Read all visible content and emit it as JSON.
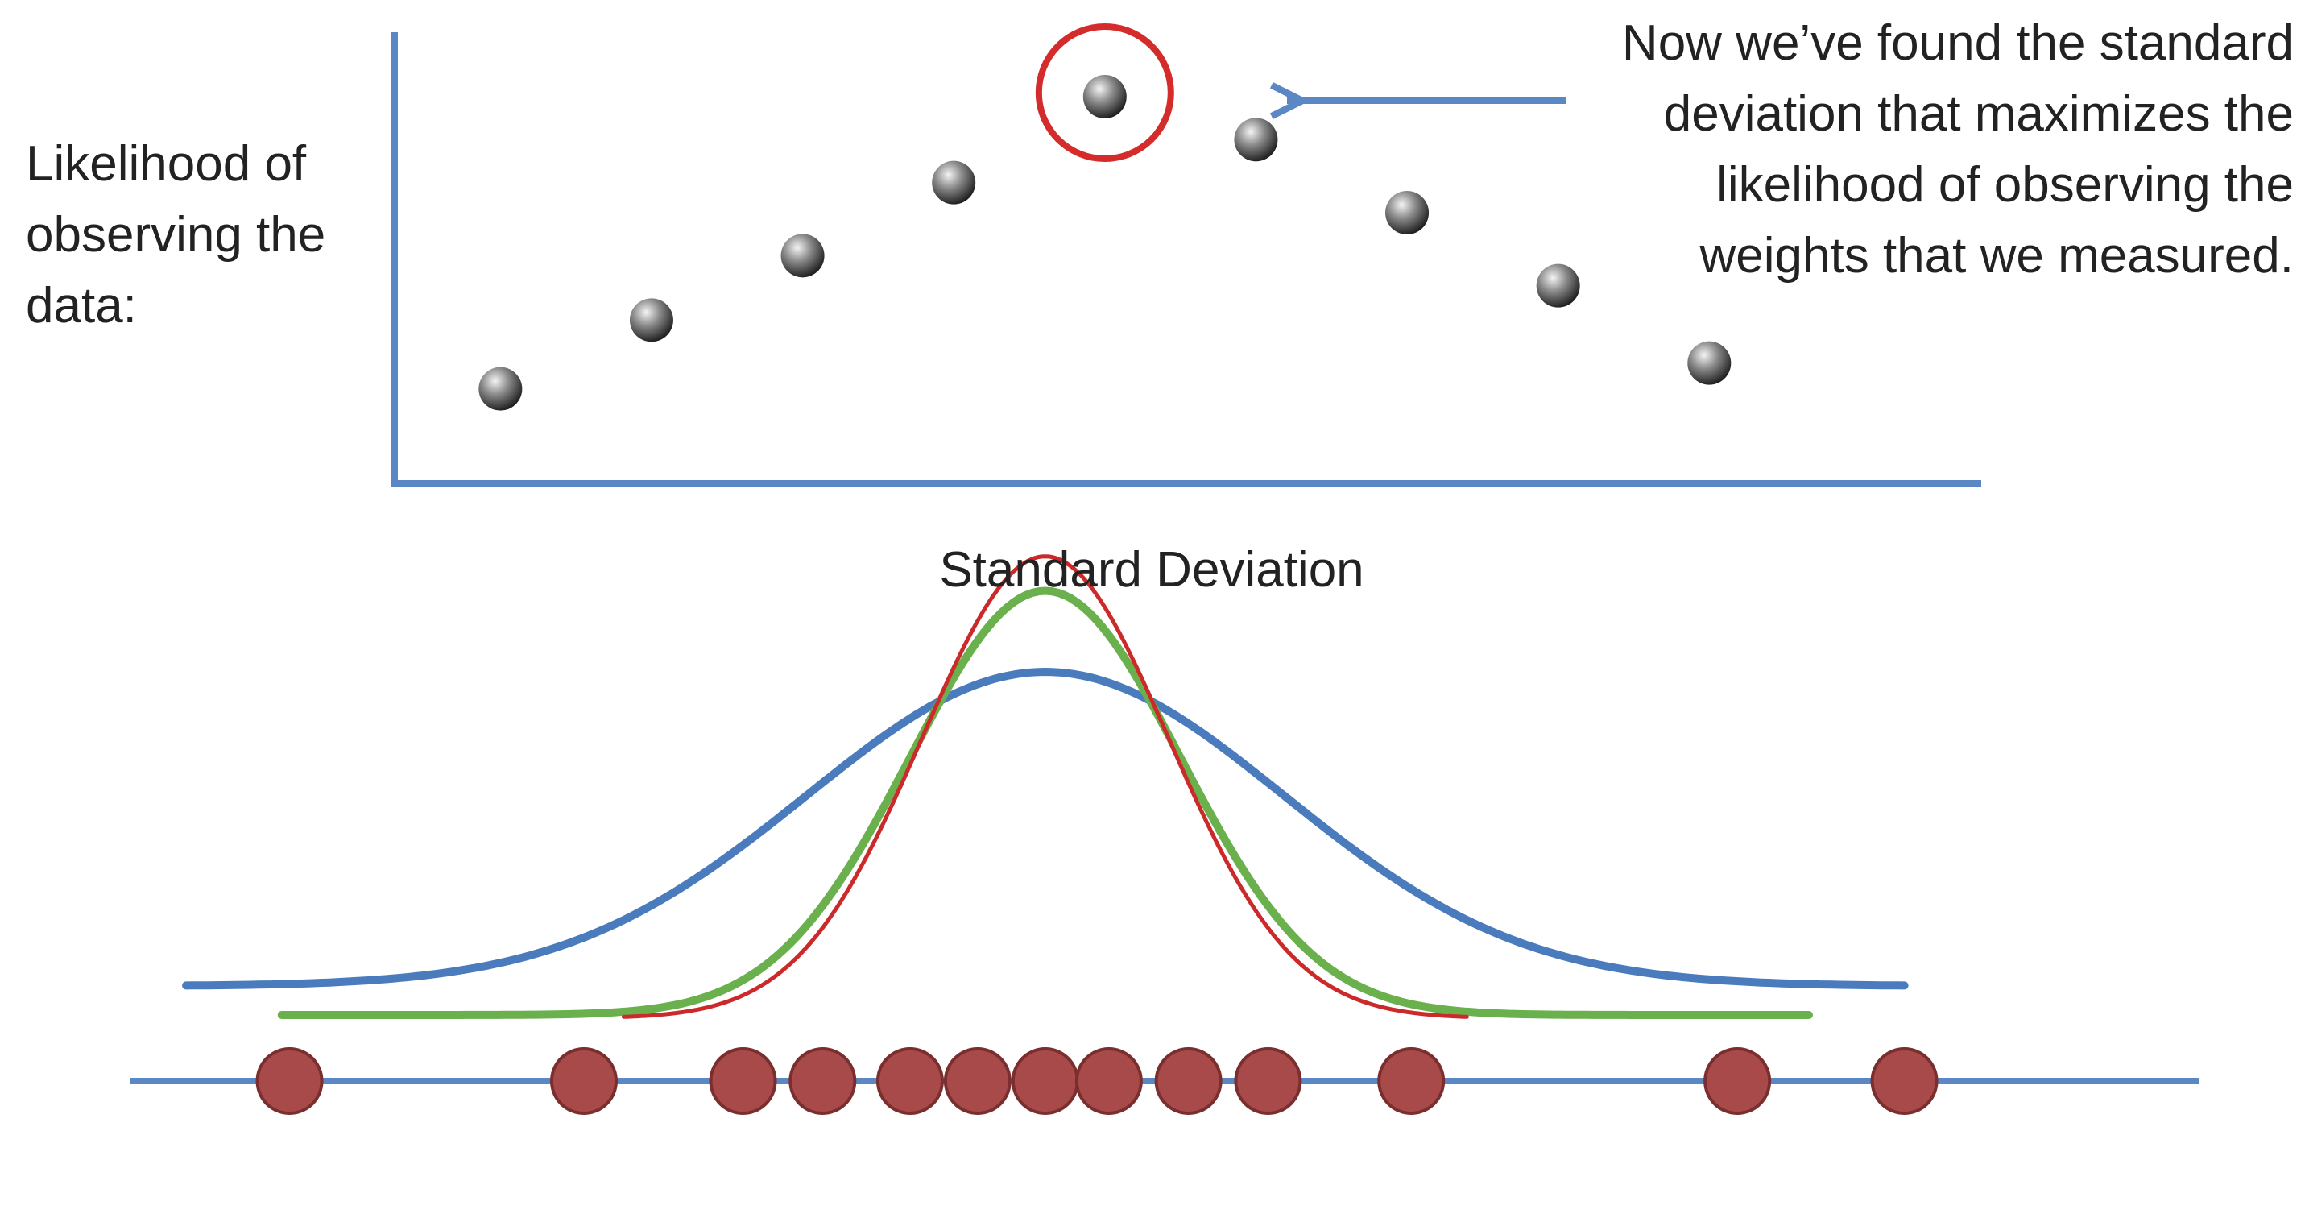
{
  "labels": {
    "y_axis_lines": [
      "Likelihood of",
      "observing the",
      "data:"
    ],
    "x_axis": "Standard Deviation",
    "callout_lines": [
      "Now we’ve found the standard",
      "deviation that maximizes the",
      "likelihood of observing the",
      "weights that we measured."
    ]
  },
  "chart_data": {
    "type": "scatter",
    "points": [
      {
        "x": 1,
        "y": 0.22
      },
      {
        "x": 2,
        "y": 0.38
      },
      {
        "x": 3,
        "y": 0.53
      },
      {
        "x": 4,
        "y": 0.7
      },
      {
        "x": 5,
        "y": 0.9,
        "highlighted": true
      },
      {
        "x": 6,
        "y": 0.8
      },
      {
        "x": 7,
        "y": 0.63
      },
      {
        "x": 8,
        "y": 0.46
      },
      {
        "x": 9,
        "y": 0.28
      }
    ],
    "xlim": [
      0.3,
      10.8
    ],
    "ylim": [
      0,
      1.05
    ]
  },
  "distribution": {
    "measurements": [
      -9.5,
      -5.8,
      -3.8,
      -2.8,
      -1.7,
      -0.85,
      0,
      0.8,
      1.8,
      2.8,
      4.6,
      8.7,
      10.8
    ],
    "curves": [
      {
        "color": "#4a7bbd",
        "sigma": 3.0,
        "peak": 1.0
      },
      {
        "color": "#6ab04c",
        "sigma": 1.7,
        "peak": 1.35
      },
      {
        "color": "#cc2a2a",
        "sigma": 1.55,
        "peak": 1.47
      }
    ],
    "xlim": [
      -11.5,
      14.5
    ],
    "colors": {
      "axis": "#5b87c5",
      "dot": "#a84a4a",
      "highlight": "#d42b2b"
    }
  }
}
